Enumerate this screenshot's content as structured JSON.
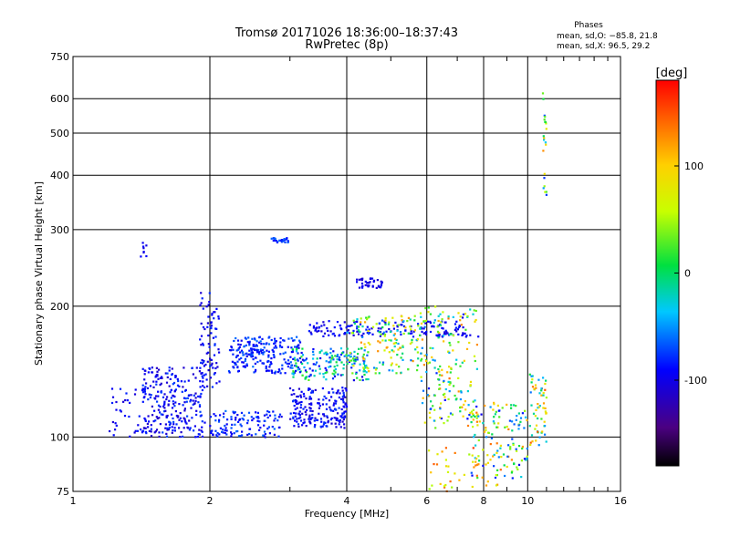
{
  "chart_data": {
    "type": "scatter",
    "title": "Tromsø 20171026 18:36:00–18:37:43",
    "subtitle": "RwPretec (8p)",
    "xlabel": "Frequency [MHz]",
    "ylabel": "Stationary phase Virtual Height [km]",
    "xscale": "log",
    "yscale": "log",
    "xlim": [
      1,
      16
    ],
    "ylim": [
      75,
      750
    ],
    "xticks": [
      1,
      2,
      4,
      6,
      8,
      10,
      16
    ],
    "yticks": [
      75,
      100,
      200,
      300,
      400,
      500,
      600,
      750
    ],
    "grid": true,
    "phase_stats": {
      "title": "Phases",
      "line_o": "mean, sd,O: −85.8, 21.8",
      "line_x": "mean, sd,X:  96.5, 29.2"
    },
    "colorbar": {
      "label": "[deg]",
      "min": -180,
      "max": 180,
      "ticks": [
        100,
        0,
        -100
      ]
    },
    "clusters": [
      {
        "f": [
          1.42,
          1.95
        ],
        "h": [
          100,
          145
        ],
        "phase": [
          -115,
          -70
        ],
        "n": 260
      },
      {
        "f": [
          1.2,
          1.45
        ],
        "h": [
          100,
          130
        ],
        "phase": [
          -110,
          -80
        ],
        "n": 40
      },
      {
        "f": [
          1.9,
          2.1
        ],
        "h": [
          130,
          215
        ],
        "phase": [
          -110,
          -75
        ],
        "n": 80
      },
      {
        "f": [
          2.2,
          3.2
        ],
        "h": [
          140,
          170
        ],
        "phase": [
          -100,
          -60
        ],
        "n": 220
      },
      {
        "f": [
          3.0,
          4.0
        ],
        "h": [
          105,
          130
        ],
        "phase": [
          -115,
          -75
        ],
        "n": 200
      },
      {
        "f": [
          2.0,
          2.9
        ],
        "h": [
          100,
          115
        ],
        "phase": [
          -100,
          -60
        ],
        "n": 120
      },
      {
        "f": [
          3.0,
          4.5
        ],
        "h": [
          135,
          160
        ],
        "phase": [
          -110,
          30
        ],
        "n": 170
      },
      {
        "f": [
          3.3,
          7.5
        ],
        "h": [
          170,
          185
        ],
        "phase": [
          -110,
          -80
        ],
        "n": 160
      },
      {
        "f": [
          4.2,
          4.8
        ],
        "h": [
          220,
          232
        ],
        "phase": [
          -110,
          -90
        ],
        "n": 40
      },
      {
        "f": [
          4.0,
          6.0
        ],
        "h": [
          140,
          190
        ],
        "phase": [
          -70,
          130
        ],
        "n": 160
      },
      {
        "f": [
          5.8,
          7.8
        ],
        "h": [
          105,
          200
        ],
        "phase": [
          -100,
          140
        ],
        "n": 180
      },
      {
        "f": [
          7.5,
          10.0
        ],
        "h": [
          80,
          120
        ],
        "phase": [
          -100,
          140
        ],
        "n": 130
      },
      {
        "f": [
          10.1,
          11.0
        ],
        "h": [
          95,
          140
        ],
        "phase": [
          -60,
          150
        ],
        "n": 60
      },
      {
        "f": [
          2.7,
          3.0
        ],
        "h": [
          280,
          287
        ],
        "phase": [
          -90,
          -60
        ],
        "n": 25
      },
      {
        "f": [
          1.4,
          1.45
        ],
        "h": [
          260,
          280
        ],
        "phase": [
          -110,
          -90
        ],
        "n": 8
      },
      {
        "f": [
          10.8,
          11.0
        ],
        "h": [
          350,
          620
        ],
        "phase": [
          -100,
          130
        ],
        "n": 22
      },
      {
        "f": [
          6.0,
          9.0
        ],
        "h": [
          75,
          95
        ],
        "phase": [
          40,
          160
        ],
        "n": 40
      }
    ]
  }
}
